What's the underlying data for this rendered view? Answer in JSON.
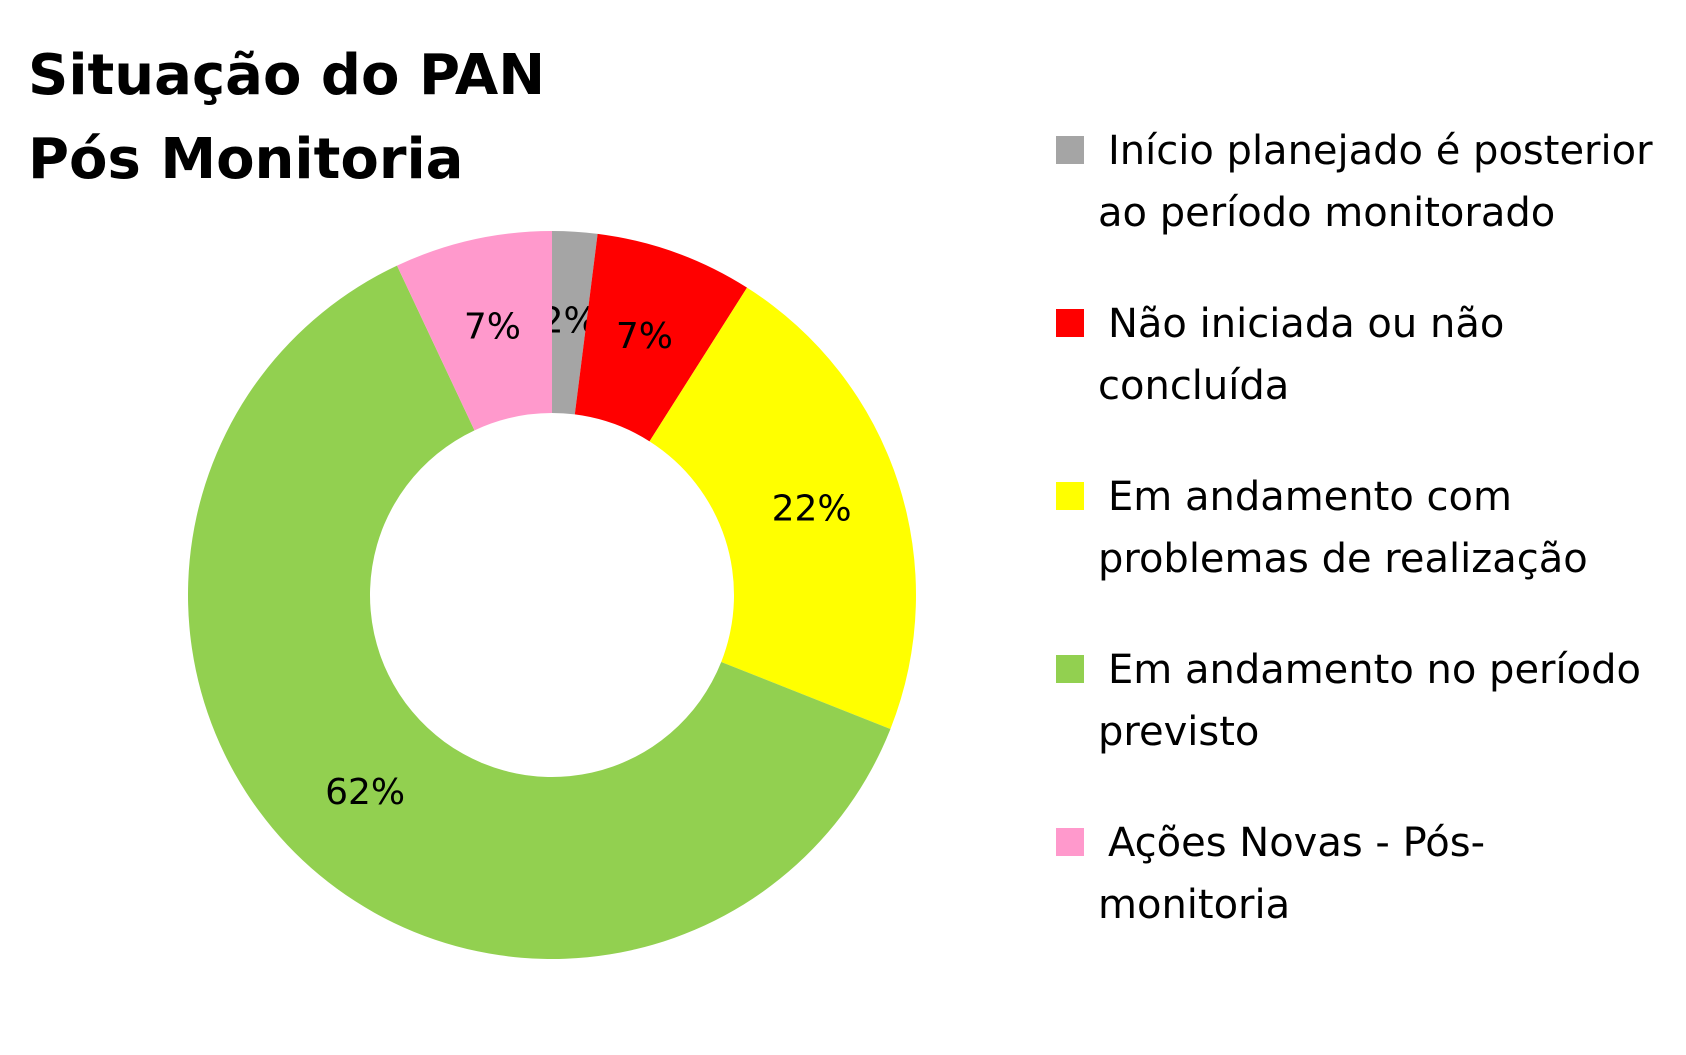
{
  "chart_data": {
    "type": "donut",
    "title": "Situação do PAN Pós Monitoria",
    "series": [
      {
        "name": "Início planejado é posterior ao período monitorado",
        "color": "#a5a5a5",
        "values": [
          2
        ],
        "value_labels": [
          "2%"
        ]
      },
      {
        "name": "Não iniciada ou não concluída",
        "color": "#ff0000",
        "values": [
          7
        ],
        "value_labels": [
          "7%"
        ]
      },
      {
        "name": "Em andamento com problemas de realização",
        "color": "#ffff00",
        "values": [
          22
        ],
        "value_labels": [
          "22%"
        ]
      },
      {
        "name": "Em andamento no período previsto",
        "color": "#92d050",
        "values": [
          62
        ],
        "value_labels": [
          "62%"
        ]
      },
      {
        "name": "Ações Novas - Pós-monitoria",
        "color": "#ff99cc",
        "values": [
          7
        ],
        "value_labels": [
          "7%"
        ]
      }
    ]
  }
}
